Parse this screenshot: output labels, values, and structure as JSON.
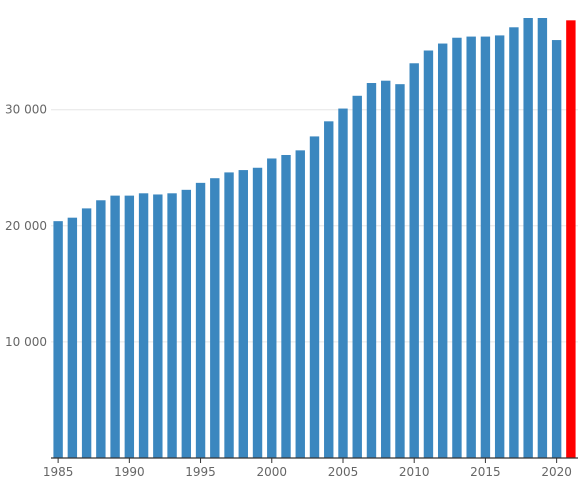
{
  "chart_data": {
    "type": "bar",
    "title": "",
    "xlabel": "",
    "ylabel": "",
    "x": [
      1985,
      1986,
      1987,
      1988,
      1989,
      1990,
      1991,
      1992,
      1993,
      1994,
      1995,
      1996,
      1997,
      1998,
      1999,
      2000,
      2001,
      2002,
      2003,
      2004,
      2005,
      2006,
      2007,
      2008,
      2009,
      2010,
      2011,
      2012,
      2013,
      2014,
      2015,
      2016,
      2017,
      2018,
      2019,
      2020,
      2021
    ],
    "values": [
      20400,
      20700,
      21500,
      22200,
      22600,
      22600,
      22800,
      22700,
      22800,
      23100,
      23700,
      24100,
      24600,
      24800,
      25000,
      25800,
      26100,
      26500,
      27700,
      29000,
      30100,
      31200,
      32300,
      32500,
      32200,
      34000,
      35100,
      35700,
      36200,
      36300,
      36300,
      36400,
      37100,
      37900,
      37900,
      36000,
      37700
    ],
    "highlight_x": 2021,
    "colors": {
      "bar": "#3b87bf",
      "highlight": "#ff0000"
    },
    "ylim": [
      0,
      37900
    ],
    "yticks": [
      10000,
      20000,
      30000
    ],
    "ytick_labels": [
      "10 000",
      "20 000",
      "30 000"
    ],
    "xticks": [
      1985,
      1990,
      1995,
      2000,
      2005,
      2010,
      2015,
      2020
    ],
    "xtick_labels": [
      "1985",
      "1990",
      "1995",
      "2000",
      "2005",
      "2010",
      "2015",
      "2020"
    ],
    "grid": true,
    "legend": "none"
  }
}
